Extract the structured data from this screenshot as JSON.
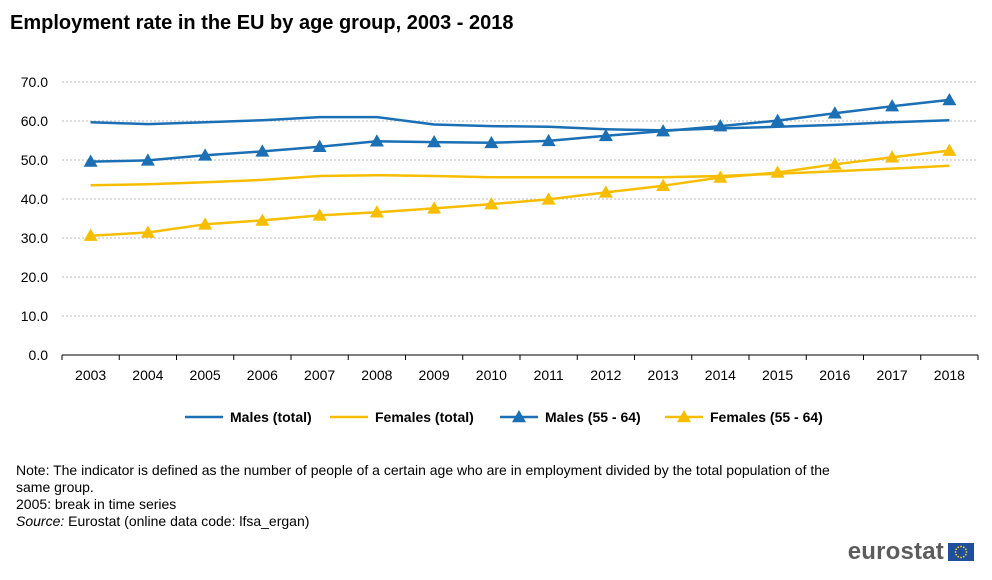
{
  "title": "Employment rate in the EU by age group, 2003 - 2018",
  "notes": {
    "note": "Note: The indicator is defined as the number of people of a certain age who are in employment divided by the total population of the same group.",
    "break": "2005: break in time series",
    "source_label": "Source:",
    "source_text": " Eurostat (online data code: lfsa_ergan)"
  },
  "logo": {
    "text": "eurostat",
    "flag_icon": "eu-flag-icon"
  },
  "chart_data": {
    "type": "line",
    "title": "",
    "xlabel": "",
    "ylabel": "",
    "x": [
      "2003",
      "2004",
      "2005",
      "2006",
      "2007",
      "2008",
      "2009",
      "2010",
      "2011",
      "2012",
      "2013",
      "2014",
      "2015",
      "2016",
      "2017",
      "2018"
    ],
    "ylim": [
      0,
      70
    ],
    "yticks": [
      "0.0",
      "10.0",
      "20.0",
      "30.0",
      "40.0",
      "50.0",
      "60.0",
      "70.0"
    ],
    "grid": true,
    "legend_position": "bottom",
    "series": [
      {
        "name": "Males (total)",
        "color": "#1a6fb5",
        "marker": "none",
        "values": [
          59.7,
          59.2,
          59.7,
          60.2,
          61.0,
          61.0,
          59.1,
          58.7,
          58.5,
          57.9,
          57.6,
          58.1,
          58.5,
          59.0,
          59.7,
          60.2
        ]
      },
      {
        "name": "Females (total)",
        "color": "#f7be00",
        "marker": "none",
        "values": [
          43.5,
          43.8,
          44.3,
          44.9,
          45.9,
          46.1,
          45.9,
          45.6,
          45.6,
          45.6,
          45.6,
          45.9,
          46.5,
          47.1,
          47.8,
          48.5
        ]
      },
      {
        "name": "Males (55 - 64)",
        "color": "#1a6fb5",
        "marker": "triangle",
        "values": [
          49.6,
          49.9,
          51.2,
          52.2,
          53.4,
          54.8,
          54.6,
          54.4,
          54.9,
          56.2,
          57.4,
          58.7,
          60.1,
          62.0,
          63.8,
          65.4
        ]
      },
      {
        "name": "Females (55 - 64)",
        "color": "#f7be00",
        "marker": "triangle",
        "values": [
          30.6,
          31.4,
          33.5,
          34.5,
          35.8,
          36.6,
          37.6,
          38.7,
          39.9,
          41.7,
          43.4,
          45.5,
          46.8,
          48.9,
          50.7,
          52.4
        ]
      }
    ]
  }
}
